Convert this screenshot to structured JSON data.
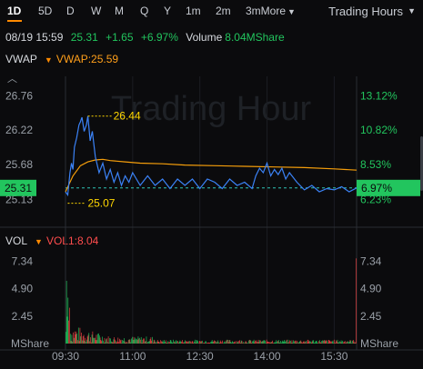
{
  "timeframes": [
    "1D",
    "5D",
    "D",
    "W",
    "M",
    "Q",
    "Y",
    "1m",
    "2m",
    "3m",
    "More"
  ],
  "session_label": "Trading Hours",
  "quote": {
    "datetime": "08/19 15:59",
    "price": "25.31",
    "change": "+1.65",
    "change_pct": "+6.97%",
    "volume_label": "Volume",
    "volume": "8.04MShare"
  },
  "vwap_indicator": {
    "name": "VWAP",
    "value_text": "VWAP:25.59"
  },
  "vol_indicator": {
    "name": "VOL",
    "value_text": "VOL1:8.04"
  },
  "watermark": "Trading Hour",
  "colors": {
    "price_line": "#3b82f6",
    "vwap_line": "#f59e0b",
    "up": "#22c55e",
    "down": "#ef4444",
    "accent": "#ff8a00"
  },
  "chart_data": [
    {
      "type": "line",
      "price_ticks": [
        "26.76",
        "26.22",
        "25.68",
        "25.13"
      ],
      "pct_ticks": [
        "13.12%",
        "10.82%",
        "8.53%",
        "6.23%"
      ],
      "current_price_tag": "25.31",
      "current_pct_tag": "6.97%",
      "high_annotation": "26.44",
      "low_annotation": "25.07",
      "x_ticks": [
        "09:30",
        "11:00",
        "12:30",
        "14:00",
        "15:30"
      ],
      "ylim": [
        24.95,
        26.95
      ],
      "time_range_min": [
        0,
        390
      ],
      "series": [
        {
          "name": "price",
          "t": [
            0,
            3,
            6,
            8,
            10,
            12,
            15,
            18,
            20,
            22,
            25,
            28,
            30,
            33,
            36,
            40,
            45,
            50,
            55,
            60,
            65,
            70,
            75,
            80,
            85,
            90,
            100,
            110,
            120,
            130,
            140,
            150,
            160,
            170,
            180,
            190,
            200,
            210,
            220,
            230,
            240,
            250,
            255,
            260,
            265,
            270,
            275,
            280,
            285,
            290,
            295,
            300,
            310,
            320,
            330,
            340,
            350,
            360,
            370,
            380,
            390
          ],
          "values": [
            25.25,
            25.2,
            25.55,
            25.7,
            25.6,
            25.95,
            26.1,
            26.3,
            26.35,
            26.42,
            26.2,
            26.3,
            26.44,
            26.05,
            26.2,
            25.8,
            25.55,
            25.7,
            25.45,
            25.6,
            25.4,
            25.55,
            25.35,
            25.5,
            25.4,
            25.55,
            25.35,
            25.5,
            25.35,
            25.45,
            25.3,
            25.45,
            25.35,
            25.45,
            25.3,
            25.45,
            25.4,
            25.3,
            25.45,
            25.35,
            25.4,
            25.3,
            25.5,
            25.62,
            25.55,
            25.7,
            25.5,
            25.6,
            25.52,
            25.62,
            25.45,
            25.55,
            25.4,
            25.28,
            25.35,
            25.25,
            25.3,
            25.28,
            25.33,
            25.25,
            25.31
          ]
        },
        {
          "name": "vwap",
          "t": [
            0,
            10,
            20,
            30,
            40,
            50,
            60,
            80,
            100,
            130,
            160,
            200,
            240,
            280,
            320,
            360,
            390
          ],
          "values": [
            25.25,
            25.5,
            25.66,
            25.72,
            25.75,
            25.76,
            25.74,
            25.72,
            25.7,
            25.69,
            25.67,
            25.66,
            25.65,
            25.64,
            25.63,
            25.61,
            25.59
          ]
        }
      ]
    },
    {
      "type": "bar",
      "title": "VOL",
      "unit_label": "MShare",
      "y_ticks": [
        "7.34",
        "4.90",
        "2.45"
      ],
      "ylim": [
        0,
        8.6
      ],
      "bars_count": 390,
      "bars_first": [
        {
          "minute": 0,
          "value": 1.05,
          "up": true
        },
        {
          "minute": 1,
          "value": 5.6,
          "up": true
        },
        {
          "minute": 2,
          "value": 2.4,
          "up": true
        },
        {
          "minute": 3,
          "value": 4.1,
          "up": true
        },
        {
          "minute": 4,
          "value": 2.05,
          "up": false
        },
        {
          "minute": 5,
          "value": 3.2,
          "up": false
        },
        {
          "minute": 389,
          "value": 7.6,
          "up": false
        }
      ],
      "typical_bar_range": [
        0.05,
        1.8
      ]
    }
  ]
}
